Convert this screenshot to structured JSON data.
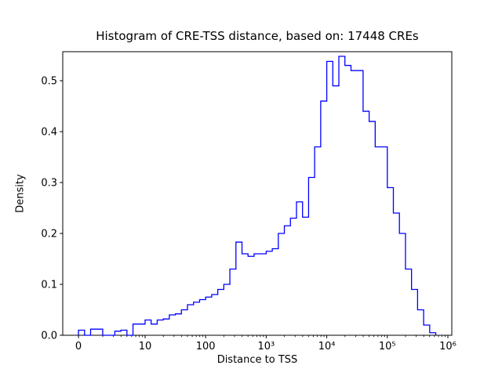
{
  "chart_data": {
    "type": "line",
    "subtype": "step-histogram",
    "title": "Histogram of CRE-TSS distance, based on: 17448 CREs",
    "xlabel": "Distance to TSS",
    "ylabel": "Density",
    "n_cres": "17448",
    "x_scale": "symlog",
    "ylim": [
      0,
      0.557
    ],
    "yticks": [
      0.0,
      0.1,
      0.2,
      0.3,
      0.4,
      0.5
    ],
    "ytick_labels": [
      "0.0",
      "0.1",
      "0.2",
      "0.3",
      "0.4",
      "0.5"
    ],
    "xticks_u": [
      -0.1,
      1,
      2,
      3,
      4,
      5,
      6
    ],
    "xtick_labels": [
      "0",
      "10",
      "100",
      "10³",
      "10⁴",
      "10⁵",
      "10⁶"
    ],
    "line_color": "#0000ff",
    "grid": false,
    "legend": "none",
    "bins_log10_start": -0.1,
    "bins_log10_width": 0.1,
    "densities": [
      0.01,
      0.0,
      0.012,
      0.012,
      0.0,
      0.0,
      0.008,
      0.01,
      0.0,
      0.022,
      0.022,
      0.03,
      0.022,
      0.03,
      0.032,
      0.04,
      0.042,
      0.05,
      0.06,
      0.065,
      0.07,
      0.075,
      0.08,
      0.09,
      0.1,
      0.13,
      0.183,
      0.16,
      0.155,
      0.16,
      0.16,
      0.165,
      0.17,
      0.2,
      0.215,
      0.23,
      0.262,
      0.232,
      0.31,
      0.37,
      0.46,
      0.538,
      0.49,
      0.548,
      0.53,
      0.52,
      0.52,
      0.44,
      0.42,
      0.37,
      0.37,
      0.29,
      0.24,
      0.2,
      0.13,
      0.09,
      0.05,
      0.02,
      0.005
    ]
  }
}
